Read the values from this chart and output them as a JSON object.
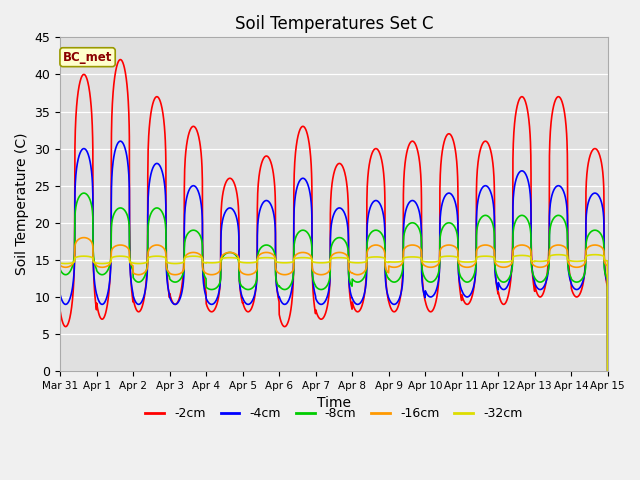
{
  "title": "Soil Temperatures Set C",
  "xlabel": "Time",
  "ylabel": "Soil Temperature (C)",
  "annotation": "BC_met",
  "ylim": [
    0,
    45
  ],
  "xlim": [
    0,
    15
  ],
  "background_color": "#f0f0f0",
  "plot_bg_color": "#e0e0e0",
  "series": [
    {
      "label": "-2cm",
      "color": "#ff0000",
      "peaks": [
        40,
        42,
        37,
        33,
        26,
        29,
        33,
        28,
        30,
        31,
        32,
        31,
        37,
        37,
        30
      ],
      "troughs": [
        6,
        7,
        8,
        9,
        8,
        8,
        6,
        7,
        8,
        8,
        8,
        9,
        9,
        10,
        10
      ],
      "mean": 15
    },
    {
      "label": "-4cm",
      "color": "#0000ff",
      "peaks": [
        30,
        31,
        28,
        25,
        22,
        23,
        26,
        22,
        23,
        23,
        24,
        25,
        27,
        25,
        24
      ],
      "troughs": [
        9,
        9,
        9,
        9,
        9,
        9,
        9,
        9,
        9,
        9,
        10,
        10,
        11,
        11,
        11
      ],
      "mean": 15
    },
    {
      "label": "-8cm",
      "color": "#00cc00",
      "peaks": [
        24,
        22,
        22,
        19,
        16,
        17,
        19,
        18,
        19,
        20,
        20,
        21,
        21,
        21,
        19
      ],
      "troughs": [
        13,
        13,
        12,
        12,
        11,
        11,
        11,
        11,
        12,
        12,
        12,
        12,
        12,
        12,
        12
      ],
      "mean": 15
    },
    {
      "label": "-16cm",
      "color": "#ff9900",
      "peaks": [
        18,
        17,
        17,
        16,
        16,
        16,
        16,
        16,
        17,
        17,
        17,
        17,
        17,
        17,
        17
      ],
      "troughs": [
        14,
        14,
        13,
        13,
        13,
        13,
        13,
        13,
        13,
        14,
        14,
        14,
        14,
        14,
        14
      ],
      "mean": 15
    },
    {
      "label": "-32cm",
      "color": "#dddd00",
      "peaks": [
        15.5,
        15.5,
        15.5,
        15.5,
        15.3,
        15.3,
        15.3,
        15.3,
        15.4,
        15.4,
        15.5,
        15.5,
        15.6,
        15.7,
        15.7
      ],
      "troughs": [
        14.5,
        14.5,
        14.5,
        14.5,
        14.6,
        14.6,
        14.6,
        14.6,
        14.6,
        14.7,
        14.7,
        14.7,
        14.7,
        14.8,
        14.8
      ],
      "mean": 15
    }
  ],
  "tick_labels": [
    "Mar 31",
    "Apr 1",
    "Apr 2",
    "Apr 3",
    "Apr 4",
    "Apr 5",
    "Apr 6",
    "Apr 7",
    "Apr 8",
    "Apr 9",
    "Apr 10",
    "Apr 11",
    "Apr 12",
    "Apr 13",
    "Apr 14",
    "Apr 15"
  ],
  "peak_phase": 0.65,
  "trough_phase": 0.2,
  "sharpness": 4,
  "legend_colors": [
    "#ff0000",
    "#0000ff",
    "#00cc00",
    "#ff9900",
    "#dddd00"
  ],
  "legend_labels": [
    "-2cm",
    "-4cm",
    "-8cm",
    "-16cm",
    "-32cm"
  ]
}
